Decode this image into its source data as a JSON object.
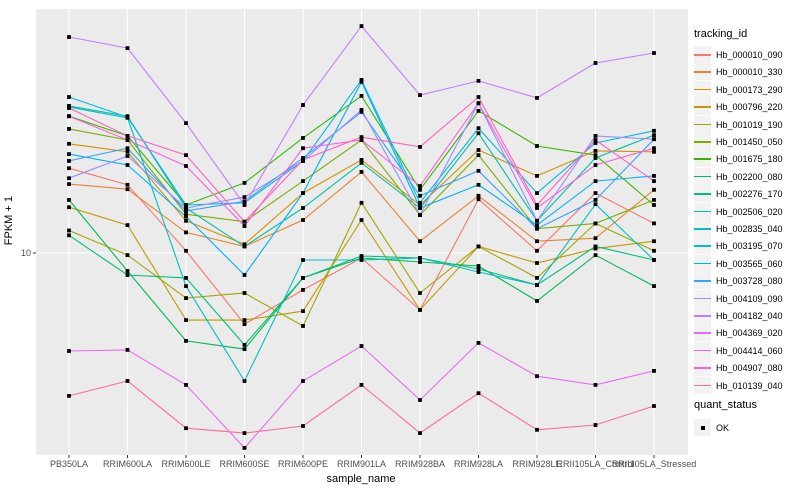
{
  "figure": {
    "background": "#FFFFFF",
    "panel_background": "#EBEBEB",
    "gridline_color": "#FFFFFF",
    "point_color": "#000000",
    "tick_label_color": "#4D4D4D",
    "tick_mark_color": "#333333"
  },
  "chart_data": {
    "type": "line",
    "title": "",
    "xlabel": "sample_name",
    "ylabel": "FPKM + 1",
    "y_scale": "log10",
    "grid": "major",
    "legend_position": "right",
    "y_ticks": [
      {
        "value": 10,
        "label": "10"
      }
    ],
    "categories": [
      "PB350LA",
      "RRIM600LA",
      "RRIM600LE",
      "RRIM600SE",
      "RRIM600PE",
      "RRIM901LA",
      "RRIM928BA",
      "RRIM928LA",
      "RRIM928LE",
      "RRII105LA_Control",
      "RRII105LA_Stressed"
    ],
    "series": [
      {
        "name": "Hb_000010_090",
        "color": "#F8766D",
        "values": [
          21.2,
          18.3,
          10.2,
          5.33,
          7.21,
          9.57,
          6.04,
          16.1,
          10.2,
          17.0,
          13.0
        ]
      },
      {
        "name": "Hb_000010_330",
        "color": "#EA8331",
        "values": [
          18.4,
          17.6,
          12.0,
          10.6,
          13.4,
          20.5,
          11.1,
          16.6,
          11.1,
          11.4,
          17.5
        ]
      },
      {
        "name": "Hb_000173_290",
        "color": "#D89000",
        "values": [
          26.3,
          24.5,
          13.3,
          10.8,
          17.0,
          22.8,
          15.3,
          24.9,
          19.8,
          24.7,
          24.5
        ]
      },
      {
        "name": "Hb_000796_220",
        "color": "#C09B00",
        "values": [
          15.0,
          12.8,
          5.52,
          5.52,
          5.98,
          13.4,
          6.04,
          10.6,
          9.15,
          10.4,
          11.1
        ]
      },
      {
        "name": "Hb_001019_190",
        "color": "#A3A500",
        "values": [
          12.2,
          9.82,
          6.71,
          7.02,
          5.24,
          15.6,
          7.02,
          10.6,
          8.02,
          13.0,
          10.2
        ]
      },
      {
        "name": "Hb_001450_050",
        "color": "#7CAE00",
        "values": [
          30.0,
          27.2,
          14.1,
          13.2,
          18.9,
          27.2,
          14.0,
          23.8,
          12.4,
          13.0,
          16.0
        ]
      },
      {
        "name": "Hb_001675_180",
        "color": "#39B600",
        "values": [
          33.6,
          28.2,
          15.3,
          18.6,
          27.7,
          40.2,
          17.5,
          35.2,
          25.8,
          23.8,
          15.3
        ]
      },
      {
        "name": "Hb_002200_080",
        "color": "#00BB4E",
        "values": [
          16.0,
          8.53,
          4.59,
          4.27,
          8.02,
          9.57,
          9.23,
          8.91,
          6.54,
          9.82,
          7.46
        ]
      },
      {
        "name": "Hb_002276_170",
        "color": "#00BF7D",
        "values": [
          11.7,
          8.23,
          8.02,
          4.43,
          8.02,
          9.74,
          9.57,
          8.68,
          7.53,
          10.6,
          9.4
        ]
      },
      {
        "name": "Hb_002506_020",
        "color": "#00C1A3",
        "values": [
          36.8,
          33.6,
          14.9,
          10.6,
          14.9,
          22.2,
          14.9,
          28.9,
          13.3,
          23.2,
          28.4
        ]
      },
      {
        "name": "Hb_002835_040",
        "color": "#00BFC4",
        "values": [
          36.4,
          33.1,
          7.46,
          3.22,
          9.4,
          9.4,
          9.57,
          8.45,
          7.53,
          15.4,
          9.4
        ]
      },
      {
        "name": "Hb_003195_070",
        "color": "#00BAE0",
        "values": [
          39.8,
          33.3,
          15.3,
          15.6,
          22.6,
          46.3,
          15.6,
          30.2,
          17.0,
          26.5,
          29.5
        ]
      },
      {
        "name": "Hb_003565_060",
        "color": "#00B0F6",
        "values": [
          24.0,
          21.8,
          13.8,
          8.23,
          17.0,
          45.5,
          14.9,
          18.3,
          12.8,
          18.9,
          19.8
        ]
      },
      {
        "name": "Hb_003728_080",
        "color": "#35A2FF",
        "values": [
          22.6,
          25.3,
          14.5,
          15.8,
          23.2,
          34.9,
          16.6,
          20.7,
          12.4,
          16.0,
          27.4
        ]
      },
      {
        "name": "Hb_004109_090",
        "color": "#9590FF",
        "values": [
          19.4,
          23.6,
          14.9,
          16.4,
          22.6,
          35.5,
          14.0,
          37.7,
          13.3,
          28.2,
          27.4
        ]
      },
      {
        "name": "Hb_004182_040",
        "color": "#C77CFF",
        "values": [
          67.7,
          61.4,
          31.6,
          15.3,
          37.1,
          74.6,
          40.5,
          45.9,
          39.5,
          53.8,
          58.8
        ]
      },
      {
        "name": "Hb_004369_020",
        "color": "#E76BF3",
        "values": [
          4.2,
          4.24,
          3.11,
          1.78,
          3.22,
          4.39,
          2.72,
          4.51,
          3.36,
          3.11,
          3.52
        ]
      },
      {
        "name": "Hb_004414_060",
        "color": "#FA62DB",
        "values": [
          33.6,
          27.2,
          21.6,
          12.7,
          25.3,
          27.2,
          18.1,
          37.7,
          14.9,
          21.8,
          25.3
        ]
      },
      {
        "name": "Hb_004907_080",
        "color": "#FF62BC",
        "values": [
          36.1,
          28.2,
          23.8,
          13.2,
          22.8,
          27.9,
          25.6,
          39.8,
          15.3,
          27.2,
          18.9
        ]
      },
      {
        "name": "Hb_010139_040",
        "color": "#FF6A98",
        "values": [
          2.82,
          3.22,
          2.12,
          2.03,
          2.16,
          3.11,
          2.03,
          2.89,
          2.09,
          2.18,
          2.58
        ]
      }
    ]
  },
  "legend_tracking": {
    "title": "tracking_id"
  },
  "legend_quant": {
    "title": "quant_status",
    "entries": [
      {
        "label": "OK",
        "marker": "black-square"
      }
    ]
  }
}
